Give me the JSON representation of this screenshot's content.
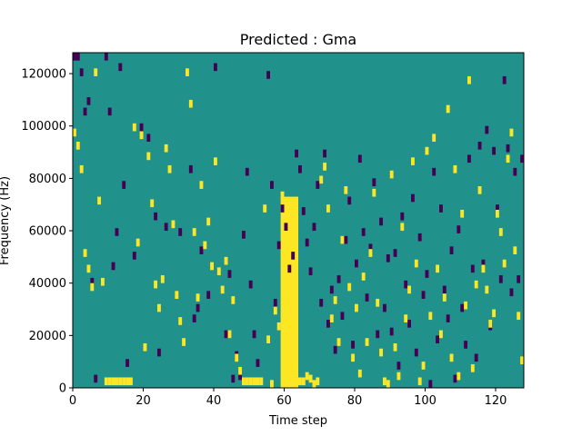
{
  "chart_data": {
    "type": "heatmap",
    "title": "Predicted : Gma",
    "xlabel": "Time step",
    "ylabel": "Frequency (Hz)",
    "xlim": [
      0,
      128
    ],
    "ylim": [
      0,
      128000
    ],
    "x_ticks": [
      0,
      20,
      40,
      60,
      80,
      100,
      120
    ],
    "x_tick_labels": [
      "0",
      "20",
      "40",
      "60",
      "80",
      "100",
      "120"
    ],
    "y_ticks": [
      0,
      20000,
      40000,
      60000,
      80000,
      100000,
      120000
    ],
    "y_tick_labels": [
      "0",
      "20000",
      "40000",
      "60000",
      "80000",
      "100000",
      "120000"
    ],
    "colormap": "viridis",
    "value_levels": [
      -1,
      0,
      1
    ],
    "colors": {
      "low": "#440154",
      "mid": "#21918c",
      "high": "#fde725"
    },
    "grid": false,
    "freq_bin_hz": 1000,
    "cells_low": [
      [
        0,
        127
      ],
      [
        1,
        127
      ],
      [
        2,
        121
      ],
      [
        3,
        106
      ],
      [
        4,
        110
      ],
      [
        5,
        41
      ],
      [
        6,
        4
      ],
      [
        9,
        127
      ],
      [
        10,
        106
      ],
      [
        11,
        47
      ],
      [
        12,
        60
      ],
      [
        13,
        123
      ],
      [
        14,
        78
      ],
      [
        15,
        10
      ],
      [
        17,
        51
      ],
      [
        19,
        100
      ],
      [
        21,
        96
      ],
      [
        23,
        66
      ],
      [
        24,
        14
      ],
      [
        26,
        62
      ],
      [
        30,
        60
      ],
      [
        33,
        84
      ],
      [
        34,
        27
      ],
      [
        35,
        31
      ],
      [
        36,
        53
      ],
      [
        38,
        36
      ],
      [
        40,
        123
      ],
      [
        43,
        21
      ],
      [
        44,
        44
      ],
      [
        45,
        4
      ],
      [
        46,
        13
      ],
      [
        47,
        5
      ],
      [
        48,
        59
      ],
      [
        49,
        83
      ],
      [
        50,
        40
      ],
      [
        51,
        21
      ],
      [
        52,
        10
      ],
      [
        55,
        120
      ],
      [
        56,
        78
      ],
      [
        57,
        33
      ],
      [
        58,
        55
      ],
      [
        59,
        69
      ],
      [
        60,
        62
      ],
      [
        61,
        46
      ],
      [
        62,
        51
      ],
      [
        63,
        90
      ],
      [
        64,
        84
      ],
      [
        65,
        68
      ],
      [
        66,
        56
      ],
      [
        67,
        45
      ],
      [
        68,
        62
      ],
      [
        69,
        78
      ],
      [
        70,
        33
      ],
      [
        71,
        90
      ],
      [
        72,
        25
      ],
      [
        73,
        38
      ],
      [
        74,
        15
      ],
      [
        75,
        42
      ],
      [
        76,
        28
      ],
      [
        77,
        57
      ],
      [
        78,
        72
      ],
      [
        79,
        17
      ],
      [
        80,
        48
      ],
      [
        81,
        88
      ],
      [
        82,
        60
      ],
      [
        83,
        35
      ],
      [
        84,
        54
      ],
      [
        85,
        79
      ],
      [
        86,
        21
      ],
      [
        87,
        64
      ],
      [
        88,
        31
      ],
      [
        89,
        50
      ],
      [
        90,
        22
      ],
      [
        91,
        52
      ],
      [
        92,
        9
      ],
      [
        93,
        66
      ],
      [
        94,
        40
      ],
      [
        95,
        25
      ],
      [
        96,
        73
      ],
      [
        97,
        14
      ],
      [
        98,
        58
      ],
      [
        99,
        36
      ],
      [
        100,
        44
      ],
      [
        101,
        2
      ],
      [
        102,
        83
      ],
      [
        103,
        19
      ],
      [
        104,
        69
      ],
      [
        105,
        38
      ],
      [
        106,
        27
      ],
      [
        107,
        53
      ],
      [
        108,
        4
      ],
      [
        109,
        61
      ],
      [
        110,
        31
      ],
      [
        111,
        17
      ],
      [
        112,
        88
      ],
      [
        113,
        46
      ],
      [
        114,
        12
      ],
      [
        115,
        93
      ],
      [
        116,
        48
      ],
      [
        117,
        99
      ],
      [
        118,
        24
      ],
      [
        119,
        91
      ],
      [
        120,
        69
      ],
      [
        121,
        42
      ],
      [
        122,
        118
      ],
      [
        123,
        92
      ],
      [
        124,
        37
      ],
      [
        125,
        83
      ],
      [
        126,
        42
      ],
      [
        127,
        88
      ]
    ],
    "cells_high": [
      [
        0,
        98
      ],
      [
        1,
        93
      ],
      [
        2,
        84
      ],
      [
        3,
        52
      ],
      [
        4,
        46
      ],
      [
        5,
        39
      ],
      [
        6,
        121
      ],
      [
        7,
        72
      ],
      [
        8,
        41
      ],
      [
        9,
        3
      ],
      [
        10,
        3
      ],
      [
        11,
        3
      ],
      [
        12,
        3
      ],
      [
        13,
        3
      ],
      [
        14,
        3
      ],
      [
        15,
        3
      ],
      [
        16,
        3
      ],
      [
        17,
        100
      ],
      [
        18,
        56
      ],
      [
        19,
        97
      ],
      [
        20,
        16
      ],
      [
        21,
        89
      ],
      [
        22,
        71
      ],
      [
        23,
        40
      ],
      [
        24,
        31
      ],
      [
        25,
        42
      ],
      [
        26,
        92
      ],
      [
        27,
        84
      ],
      [
        28,
        63
      ],
      [
        29,
        36
      ],
      [
        30,
        26
      ],
      [
        31,
        18
      ],
      [
        32,
        121
      ],
      [
        33,
        109
      ],
      [
        34,
        60
      ],
      [
        35,
        35
      ],
      [
        36,
        78
      ],
      [
        37,
        55
      ],
      [
        38,
        64
      ],
      [
        39,
        47
      ],
      [
        40,
        87
      ],
      [
        41,
        45
      ],
      [
        42,
        38
      ],
      [
        43,
        49
      ],
      [
        44,
        21
      ],
      [
        45,
        34
      ],
      [
        46,
        12
      ],
      [
        47,
        7
      ],
      [
        48,
        3
      ],
      [
        49,
        3
      ],
      [
        50,
        3
      ],
      [
        51,
        3
      ],
      [
        52,
        3
      ],
      [
        53,
        3
      ],
      [
        54,
        69
      ],
      [
        55,
        19
      ],
      [
        56,
        2
      ],
      [
        57,
        30
      ],
      [
        58,
        24
      ],
      [
        59,
        74
      ],
      [
        60,
        4
      ],
      [
        61,
        3
      ],
      [
        62,
        2
      ],
      [
        63,
        4
      ],
      [
        64,
        3
      ],
      [
        65,
        3
      ],
      [
        66,
        5
      ],
      [
        67,
        4
      ],
      [
        68,
        2
      ],
      [
        69,
        3
      ],
      [
        70,
        80
      ],
      [
        71,
        85
      ],
      [
        72,
        69
      ],
      [
        73,
        27
      ],
      [
        74,
        34
      ],
      [
        75,
        18
      ],
      [
        76,
        57
      ],
      [
        77,
        76
      ],
      [
        78,
        39
      ],
      [
        79,
        12
      ],
      [
        80,
        31
      ],
      [
        81,
        6
      ],
      [
        82,
        43
      ],
      [
        83,
        18
      ],
      [
        84,
        52
      ],
      [
        85,
        75
      ],
      [
        86,
        33
      ],
      [
        87,
        14
      ],
      [
        88,
        3
      ],
      [
        89,
        2
      ],
      [
        90,
        82
      ],
      [
        91,
        16
      ],
      [
        92,
        5
      ],
      [
        93,
        62
      ],
      [
        94,
        27
      ],
      [
        95,
        38
      ],
      [
        96,
        87
      ],
      [
        97,
        48
      ],
      [
        98,
        3
      ],
      [
        99,
        9
      ],
      [
        100,
        91
      ],
      [
        101,
        28
      ],
      [
        102,
        96
      ],
      [
        103,
        46
      ],
      [
        104,
        21
      ],
      [
        105,
        35
      ],
      [
        106,
        107
      ],
      [
        107,
        12
      ],
      [
        108,
        84
      ],
      [
        109,
        5
      ],
      [
        110,
        67
      ],
      [
        111,
        32
      ],
      [
        112,
        118
      ],
      [
        113,
        8
      ],
      [
        114,
        40
      ],
      [
        115,
        76
      ],
      [
        116,
        46
      ],
      [
        117,
        38
      ],
      [
        118,
        25
      ],
      [
        119,
        29
      ],
      [
        120,
        67
      ],
      [
        121,
        60
      ],
      [
        122,
        48
      ],
      [
        123,
        88
      ],
      [
        124,
        98
      ],
      [
        125,
        53
      ],
      [
        126,
        28
      ],
      [
        127,
        11
      ]
    ],
    "high_band": {
      "x_start": 59,
      "x_end": 64,
      "freq_max_hz": 73000,
      "note": "dense high-value block"
    }
  }
}
